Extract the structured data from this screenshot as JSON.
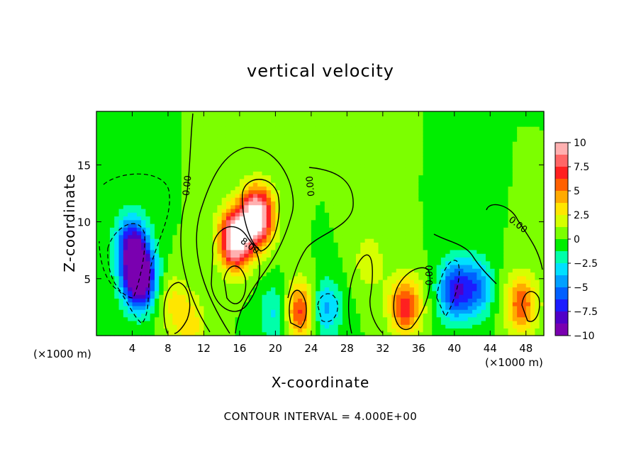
{
  "chart_data": {
    "type": "heatmap",
    "title": "vertical velocity",
    "xlabel": "X-coordinate",
    "ylabel": "Z-coordinate",
    "x_unit_left": "(×1000 m)",
    "x_unit_right": "(×1000 m)",
    "footnote": "CONTOUR INTERVAL = 4.000E+00",
    "xlim": [
      0,
      50
    ],
    "ylim": [
      0,
      19.7
    ],
    "x_ticks": [
      4,
      8,
      12,
      16,
      20,
      24,
      28,
      32,
      36,
      40,
      44,
      48
    ],
    "y_ticks": [
      5,
      10,
      15
    ],
    "colorbar": {
      "range": [
        -10,
        10
      ],
      "ticks": [
        10,
        7.5,
        5,
        2.5,
        0,
        -2.5,
        -5,
        -7.5,
        -10
      ],
      "tick_labels": [
        "10",
        "7.5",
        "5",
        "2.5",
        "0",
        "−2.5",
        "−5",
        "−7.5",
        "−10"
      ],
      "colors": [
        "#ffb0b0",
        "#ff6666",
        "#ff2020",
        "#ff6000",
        "#ffaa00",
        "#ffe600",
        "#d6ff00",
        "#7cff00",
        "#00ee00",
        "#00ffaa",
        "#00e0ff",
        "#00a0ff",
        "#0060ff",
        "#1c1cff",
        "#5000c8",
        "#7a00b0"
      ]
    },
    "contour_labels": [
      "0.00",
      "0.00",
      "0.00",
      "0.00",
      "8.00"
    ],
    "features": [
      {
        "x": 15.5,
        "z": 8.5,
        "peak": 12
      },
      {
        "x": 18.0,
        "z": 10.5,
        "peak": 12
      },
      {
        "x": 4.8,
        "z": 5.0,
        "peak": -12
      },
      {
        "x": 22.8,
        "z": 2.2,
        "peak": 7
      },
      {
        "x": 34.5,
        "z": 2.6,
        "peak": 7
      },
      {
        "x": 47.5,
        "z": 2.8,
        "peak": 6
      },
      {
        "x": 4.0,
        "z": 8.0,
        "peak": -8
      },
      {
        "x": 40.0,
        "z": 4.0,
        "peak": -7
      },
      {
        "x": 42.5,
        "z": 4.2,
        "peak": -5
      },
      {
        "x": 25.5,
        "z": 2.4,
        "peak": -4.5
      },
      {
        "x": 20.0,
        "z": 2.0,
        "peak": -3
      },
      {
        "x": 8.5,
        "z": 3.0,
        "peak": 2.5
      },
      {
        "x": 10.5,
        "z": 1.0,
        "peak": 3
      },
      {
        "x": 30.5,
        "z": 6.5,
        "peak": 2.2
      }
    ]
  }
}
